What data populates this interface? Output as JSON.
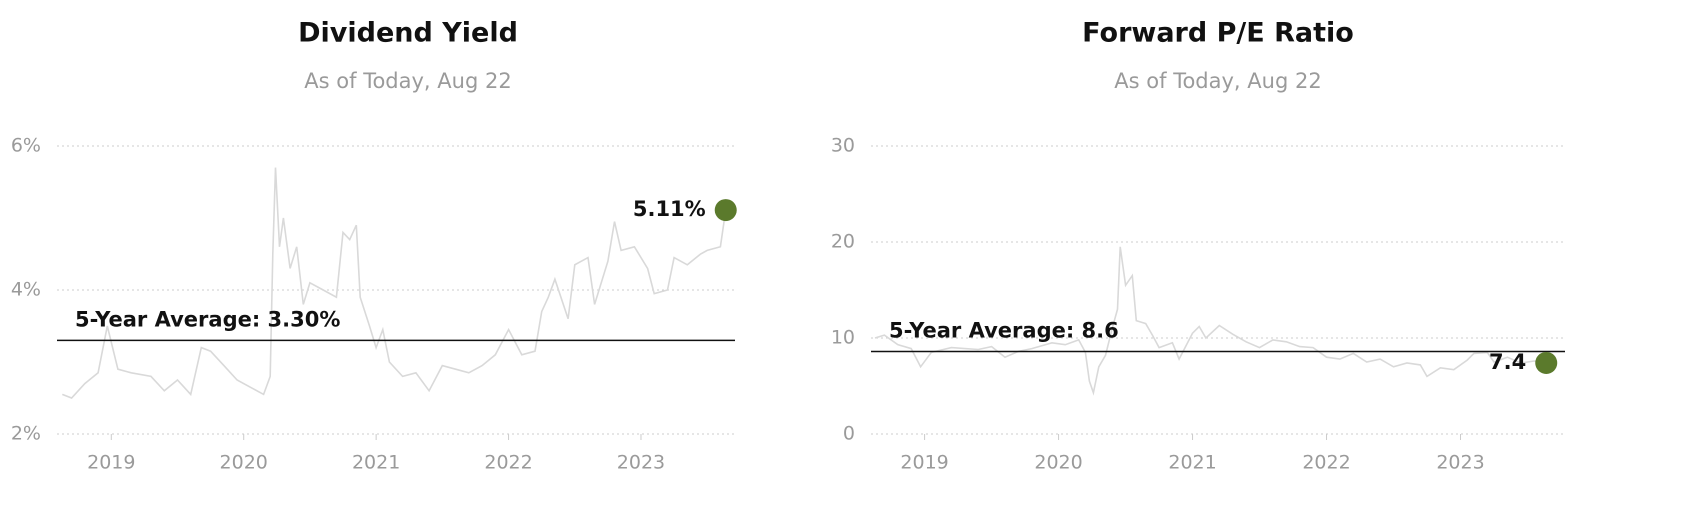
{
  "chart_data": [
    {
      "type": "line",
      "title": "Dividend Yield",
      "subtitle": "As of Today, Aug 22",
      "xlim": [
        2018.59,
        2023.71
      ],
      "xticks": [
        2019,
        2020,
        2021,
        2022,
        2023
      ],
      "ylim": [
        2,
        6
      ],
      "yticks": [
        {
          "value": 2,
          "label": "2%"
        },
        {
          "value": 4,
          "label": "4%"
        },
        {
          "value": 6,
          "label": "6%"
        }
      ],
      "grid": true,
      "average": 3.3,
      "average_label": "5-Year Average: 3.30%",
      "end_label": "5.11%",
      "end_color": "#5b7a2c",
      "series": [
        {
          "name": "Dividend Yield",
          "color": "#d9d9d9",
          "x": [
            2018.63,
            2018.7,
            2018.8,
            2018.9,
            2018.97,
            2019.05,
            2019.15,
            2019.3,
            2019.4,
            2019.5,
            2019.6,
            2019.68,
            2019.75,
            2019.85,
            2019.95,
            2020.05,
            2020.15,
            2020.2,
            2020.22,
            2020.24,
            2020.27,
            2020.3,
            2020.35,
            2020.4,
            2020.45,
            2020.5,
            2020.6,
            2020.7,
            2020.75,
            2020.8,
            2020.85,
            2020.88,
            2020.95,
            2021.0,
            2021.05,
            2021.1,
            2021.2,
            2021.3,
            2021.4,
            2021.5,
            2021.6,
            2021.7,
            2021.8,
            2021.9,
            2022.0,
            2022.1,
            2022.2,
            2022.25,
            2022.3,
            2022.35,
            2022.45,
            2022.5,
            2022.6,
            2022.65,
            2022.75,
            2022.8,
            2022.85,
            2022.95,
            2023.05,
            2023.1,
            2023.2,
            2023.25,
            2023.35,
            2023.45,
            2023.5,
            2023.6,
            2023.64
          ],
          "values": [
            2.55,
            2.5,
            2.7,
            2.85,
            3.5,
            2.9,
            2.85,
            2.8,
            2.6,
            2.75,
            2.55,
            3.2,
            3.15,
            2.95,
            2.75,
            2.65,
            2.55,
            2.8,
            4.5,
            5.7,
            4.6,
            5.0,
            4.3,
            4.6,
            3.8,
            4.1,
            4.0,
            3.9,
            4.8,
            4.7,
            4.9,
            3.9,
            3.5,
            3.2,
            3.45,
            3.0,
            2.8,
            2.85,
            2.6,
            2.95,
            2.9,
            2.85,
            2.95,
            3.1,
            3.45,
            3.1,
            3.15,
            3.7,
            3.9,
            4.15,
            3.6,
            4.35,
            4.45,
            3.8,
            4.4,
            4.95,
            4.55,
            4.6,
            4.3,
            3.95,
            4.0,
            4.45,
            4.35,
            4.5,
            4.55,
            4.6,
            5.11
          ]
        }
      ]
    },
    {
      "type": "line",
      "title": "Forward P/E Ratio",
      "subtitle": "As of Today, Aug 22",
      "xlim": [
        2018.6,
        2023.78
      ],
      "xticks": [
        2019,
        2020,
        2021,
        2022,
        2023
      ],
      "ylim": [
        0,
        30
      ],
      "yticks": [
        0,
        10,
        20,
        30
      ],
      "grid": true,
      "average": 8.6,
      "average_label": "5-Year Average: 8.6",
      "end_label": "7.4",
      "end_color": "#5b7a2c",
      "series": [
        {
          "name": "Forward P/E Ratio",
          "color": "#d9d9d9",
          "x": [
            2018.63,
            2018.7,
            2018.8,
            2018.9,
            2018.97,
            2019.05,
            2019.2,
            2019.4,
            2019.5,
            2019.6,
            2019.7,
            2019.8,
            2019.95,
            2020.05,
            2020.15,
            2020.2,
            2020.23,
            2020.26,
            2020.3,
            2020.35,
            2020.4,
            2020.44,
            2020.46,
            2020.5,
            2020.55,
            2020.58,
            2020.65,
            2020.7,
            2020.75,
            2020.85,
            2020.9,
            2021.0,
            2021.05,
            2021.1,
            2021.2,
            2021.3,
            2021.4,
            2021.5,
            2021.6,
            2021.7,
            2021.8,
            2021.9,
            2022.0,
            2022.1,
            2022.2,
            2022.3,
            2022.4,
            2022.5,
            2022.6,
            2022.7,
            2022.75,
            2022.85,
            2022.95,
            2023.05,
            2023.1,
            2023.2,
            2023.25,
            2023.35,
            2023.45,
            2023.55,
            2023.64
          ],
          "values": [
            10.0,
            10.3,
            9.3,
            8.9,
            7.0,
            8.5,
            9.0,
            8.8,
            9.1,
            8.0,
            8.6,
            8.9,
            9.5,
            9.3,
            9.8,
            8.5,
            5.5,
            4.3,
            7.0,
            8.2,
            11.0,
            13.0,
            19.5,
            15.5,
            16.5,
            11.8,
            11.5,
            10.3,
            9.0,
            9.5,
            7.8,
            10.5,
            11.2,
            10.0,
            11.3,
            10.4,
            9.6,
            9.0,
            9.8,
            9.6,
            9.1,
            9.0,
            8.0,
            7.8,
            8.4,
            7.5,
            7.8,
            7.0,
            7.4,
            7.2,
            6.0,
            6.9,
            6.7,
            7.7,
            8.4,
            8.5,
            7.5,
            8.0,
            7.4,
            7.6,
            7.4
          ]
        }
      ]
    }
  ]
}
